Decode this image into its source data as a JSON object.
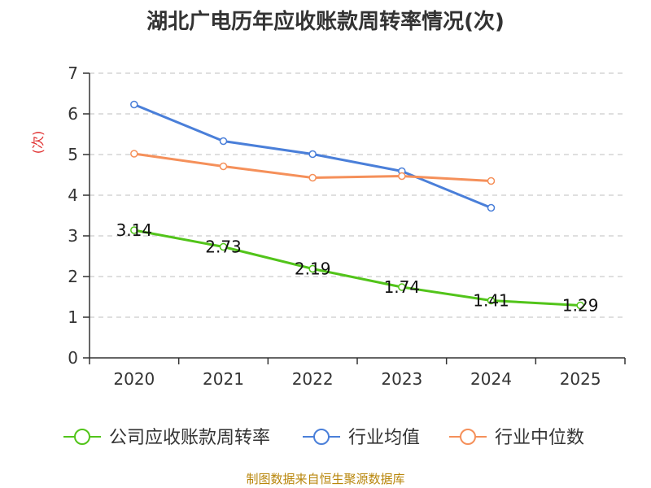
{
  "title": "湖北广电历年应收账款周转率情况(次)",
  "source": "制图数据来自恒生聚源数据库",
  "chart_data": {
    "type": "line",
    "title": "湖北广电历年应收账款周转率情况(次)",
    "ylabel": "(次)",
    "xlabel": "",
    "categories": [
      "2020",
      "2021",
      "2022",
      "2023",
      "2024",
      "2025"
    ],
    "ylim": [
      0,
      7
    ],
    "yticks": [
      0,
      1,
      2,
      3,
      4,
      5,
      6,
      7
    ],
    "grid": true,
    "legend_position": "bottom",
    "series": [
      {
        "name": "公司应收账款周转率",
        "color": "#52c41a",
        "show_labels": true,
        "values": [
          3.14,
          2.73,
          2.19,
          1.74,
          1.41,
          1.29
        ],
        "labels": [
          "3.14",
          "2.73",
          "2.19",
          "1.74",
          "1.41",
          "1.29"
        ]
      },
      {
        "name": "行业均值",
        "color": "#4a7fd9",
        "show_labels": false,
        "values": [
          6.23,
          5.33,
          5.01,
          4.59,
          3.69,
          null
        ]
      },
      {
        "name": "行业中位数",
        "color": "#f5905a",
        "show_labels": false,
        "values": [
          5.02,
          4.71,
          4.43,
          4.47,
          4.35,
          null
        ]
      }
    ]
  }
}
